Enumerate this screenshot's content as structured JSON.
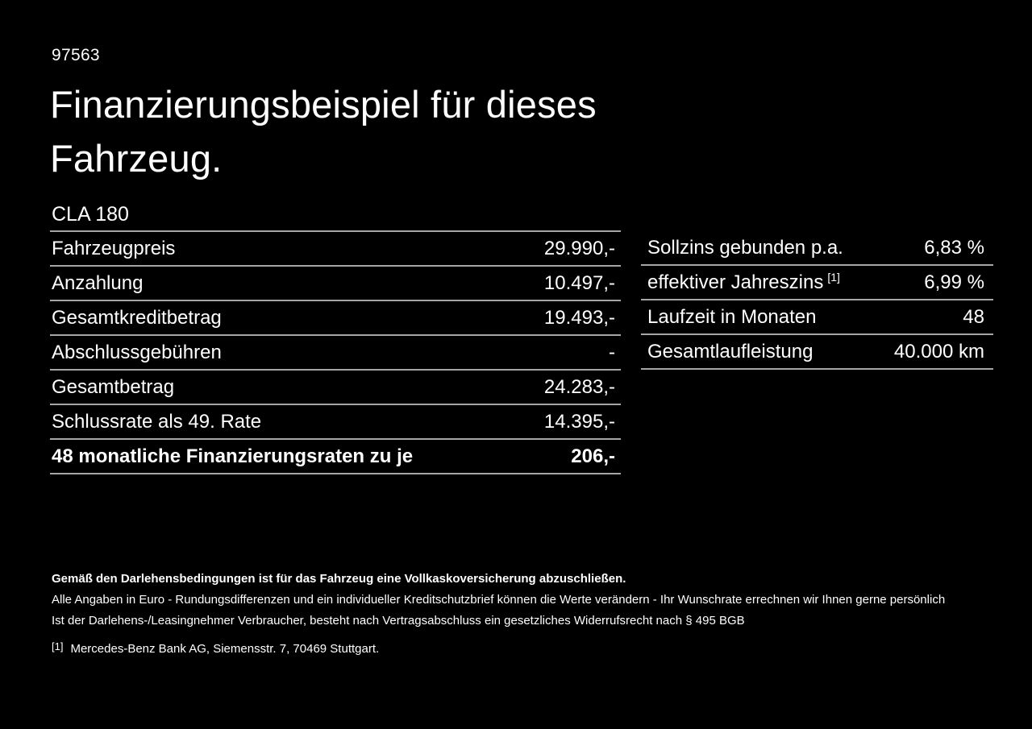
{
  "document_number": "97563",
  "title": {
    "line1": "Finanzierungsbeispiel für dieses",
    "line2": "Fahrzeug.",
    "full": "Finanzierungsbeispiel für dieses Fahrzeug."
  },
  "model": "CLA 180",
  "left_table": {
    "rows": [
      {
        "label": "Fahrzeugpreis",
        "value": "29.990,-",
        "bold": false
      },
      {
        "label": "Anzahlung",
        "value": "10.497,-",
        "bold": false
      },
      {
        "label": "Gesamtkreditbetrag",
        "value": "19.493,-",
        "bold": false
      },
      {
        "label": "Abschlussgebühren",
        "value": "-",
        "bold": false
      },
      {
        "label": "Gesamtbetrag",
        "value": "24.283,-",
        "bold": false
      },
      {
        "label": "Schlussrate als 49. Rate",
        "value": "14.395,-",
        "bold": false
      },
      {
        "label": "48 monatliche Finanzierungsraten zu je",
        "value": "206,-",
        "bold": true
      }
    ]
  },
  "right_table": {
    "rows": [
      {
        "label": "Sollzins gebunden p.a.",
        "value": "6,83 %",
        "bold": false
      },
      {
        "label": "effektiver Jahreszins",
        "sup": "[1]",
        "value": "6,99 %",
        "bold": false
      },
      {
        "label": "Laufzeit in Monaten",
        "value": "48",
        "bold": false
      },
      {
        "label": "Gesamtlaufleistung",
        "value": "40.000 km",
        "bold": false
      }
    ]
  },
  "footer": {
    "lines": [
      {
        "text": "Gemäß den Darlehensbedingungen ist für das Fahrzeug eine Vollkaskoversicherung abzuschließen.",
        "bold": true
      },
      {
        "text": "Alle Angaben in Euro - Rundungsdifferenzen und ein individueller Kreditschutzbrief können die Werte verändern - Ihr Wunschrate errechnen wir Ihnen gerne persönlich",
        "bold": false
      },
      {
        "text": "Ist der Darlehens-/Leasingnehmer Verbraucher, besteht nach Vertragsabschluss ein gesetzliches Widerrufsrecht nach § 495 BGB",
        "bold": false
      }
    ],
    "footnote": {
      "marker": "[1]",
      "text": "Mercedes-Benz Bank AG, Siemensstr. 7, 70469 Stuttgart."
    }
  },
  "colors": {
    "background": "#000000",
    "text": "#ffffff",
    "separator": "#a6a6a6"
  }
}
